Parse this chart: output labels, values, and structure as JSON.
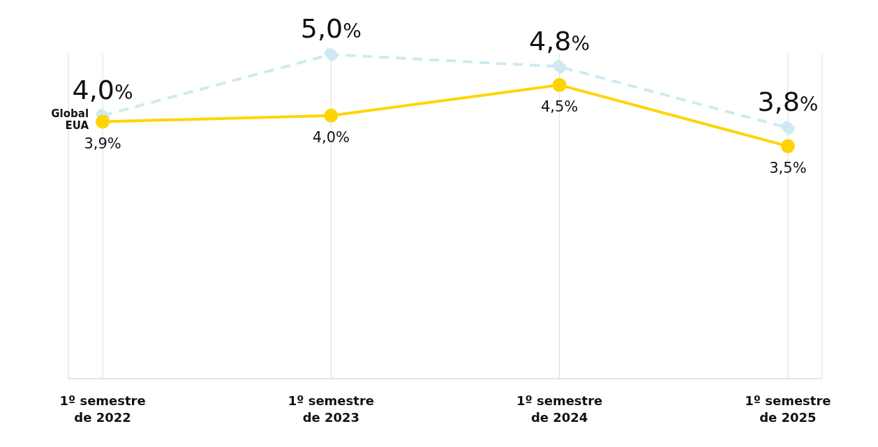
{
  "chart_data": {
    "type": "line",
    "categories": [
      "1º semestre de 2022",
      "1º semestre de 2023",
      "1º semestre de 2024",
      "1º semestre de 2025"
    ],
    "series": [
      {
        "name": "Global",
        "color": "#cdeaf2",
        "values": [
          4.0,
          5.0,
          4.8,
          3.8
        ],
        "value_labels": [
          "4,0%",
          "5,0%",
          "4,8%",
          "3,8%"
        ],
        "line_style": "dashed"
      },
      {
        "name": "EUA",
        "color": "#ffd400",
        "values": [
          3.9,
          4.0,
          4.5,
          3.5
        ],
        "value_labels": [
          "3,9%",
          "4,0%",
          "4,5%",
          "3,5%"
        ],
        "line_style": "solid"
      }
    ],
    "tick_labels": "x",
    "marker": "circle",
    "grid": "x"
  }
}
